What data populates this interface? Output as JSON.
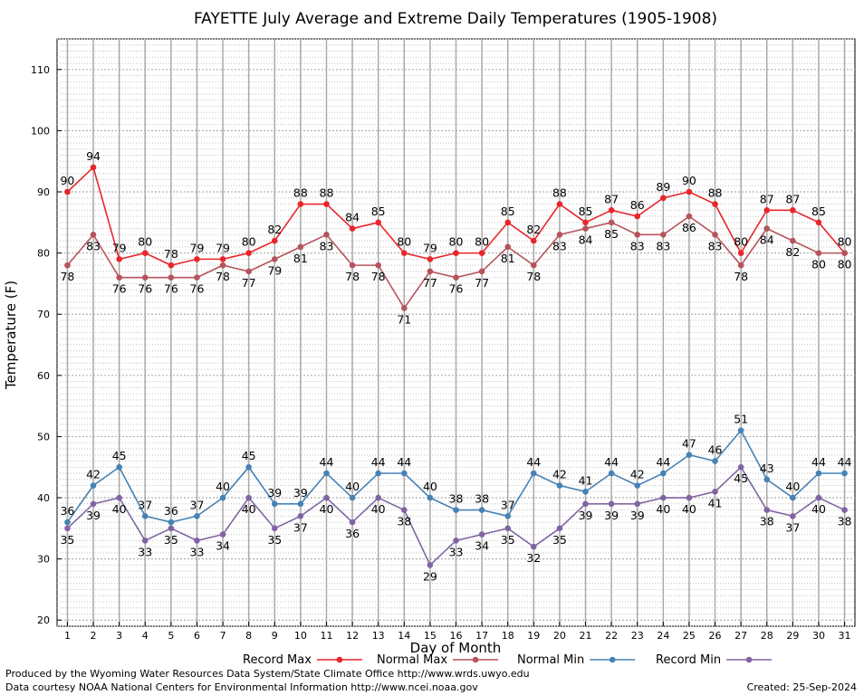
{
  "chart_data": {
    "type": "line",
    "title": "FAYETTE July Average and Extreme Daily Temperatures (1905-1908)",
    "xlabel": "Day of Month",
    "ylabel": "Temperature (F)",
    "ylim": [
      19,
      115
    ],
    "xlim": [
      0.6,
      31.4
    ],
    "yticks": [
      20,
      30,
      40,
      50,
      60,
      70,
      80,
      90,
      100,
      110
    ],
    "x": [
      1,
      2,
      3,
      4,
      5,
      6,
      7,
      8,
      9,
      10,
      11,
      12,
      13,
      14,
      15,
      16,
      17,
      18,
      19,
      20,
      21,
      22,
      23,
      24,
      25,
      26,
      27,
      28,
      29,
      30,
      31
    ],
    "grid": true,
    "legend_position": "bottom",
    "series": [
      {
        "name": "Record Max",
        "color": "#e8262b",
        "values": [
          90,
          94,
          79,
          80,
          78,
          79,
          79,
          80,
          82,
          88,
          88,
          84,
          85,
          80,
          79,
          80,
          80,
          85,
          82,
          88,
          85,
          87,
          86,
          89,
          90,
          88,
          80,
          87,
          87,
          85,
          80
        ]
      },
      {
        "name": "Normal Max",
        "color": "#b5545c",
        "values": [
          78,
          83,
          76,
          76,
          76,
          76,
          78,
          77,
          79,
          81,
          83,
          78,
          78,
          71,
          77,
          76,
          77,
          81,
          78,
          83,
          84,
          85,
          83,
          83,
          86,
          83,
          78,
          84,
          82,
          80,
          80
        ]
      },
      {
        "name": "Normal Min",
        "color": "#4682b4",
        "values": [
          36,
          42,
          45,
          37,
          36,
          37,
          40,
          45,
          39,
          39,
          44,
          40,
          44,
          44,
          40,
          38,
          38,
          37,
          44,
          42,
          41,
          44,
          42,
          44,
          47,
          46,
          51,
          43,
          40,
          44,
          44
        ]
      },
      {
        "name": "Record Min",
        "color": "#8064a2",
        "values": [
          35,
          39,
          40,
          33,
          35,
          33,
          34,
          40,
          35,
          37,
          40,
          36,
          40,
          38,
          29,
          33,
          34,
          35,
          32,
          35,
          39,
          39,
          39,
          40,
          40,
          41,
          45,
          38,
          37,
          40,
          38
        ]
      }
    ]
  },
  "footer": {
    "produced_by": "Produced by the Wyoming Water Resources Data System/State Climate Office http://www.wrds.uwyo.edu",
    "courtesy": "Data courtesy NOAA National Centers for Environmental Information http://www.ncei.noaa.gov",
    "created": "Created:  25-Sep-2024"
  }
}
